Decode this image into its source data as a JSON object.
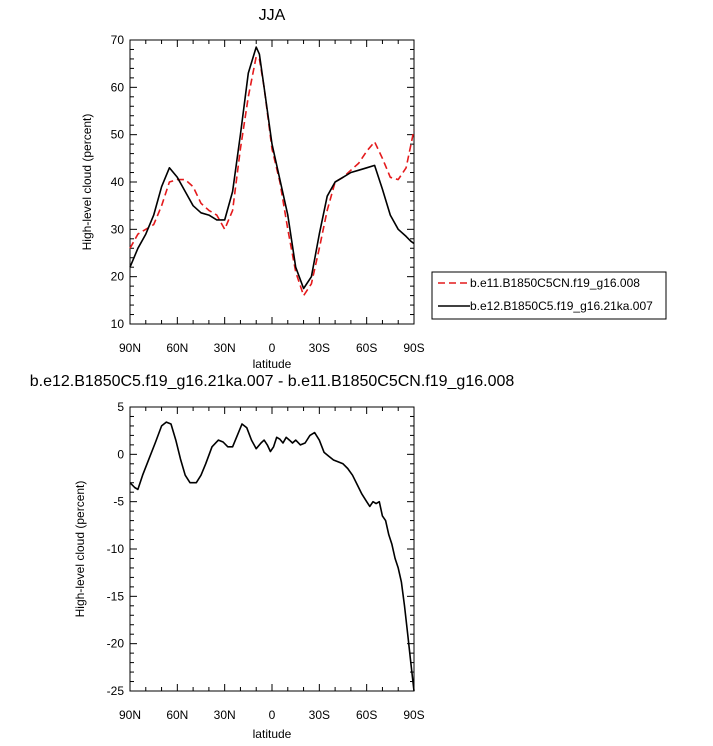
{
  "chart_data": [
    {
      "type": "line",
      "title": "JJA",
      "xlabel": "latitude",
      "ylabel": "High-level cloud (percent)",
      "xlim": [
        -90,
        90
      ],
      "ylim": [
        10,
        70
      ],
      "x_ticks": [
        -90,
        -60,
        -30,
        0,
        30,
        60,
        90
      ],
      "x_tick_labels": [
        "90N",
        "60N",
        "30N",
        "0",
        "30S",
        "60S",
        "90S"
      ],
      "y_ticks": [
        10,
        20,
        30,
        40,
        50,
        60,
        70
      ],
      "y_tick_labels": [
        "10",
        "20",
        "30",
        "40",
        "50",
        "60",
        "70"
      ],
      "legend": "right",
      "grid": false,
      "series": [
        {
          "name": "b.e11.B1850C5CN.f19_g16.008",
          "color": "#e41a1c",
          "dash": "dashed",
          "x": [
            -90,
            -85,
            -80,
            -75,
            -70,
            -65,
            -60,
            -55,
            -50,
            -45,
            -40,
            -35,
            -30,
            -25,
            -20,
            -15,
            -10,
            -8,
            -5,
            0,
            5,
            10,
            15,
            20,
            25,
            30,
            35,
            40,
            45,
            50,
            55,
            60,
            65,
            70,
            75,
            80,
            85,
            90
          ],
          "y": [
            26,
            29,
            30,
            31,
            35,
            40,
            40.5,
            40.5,
            39,
            35.5,
            34,
            33,
            30,
            34,
            47,
            58,
            66.5,
            66,
            60,
            47,
            40,
            30,
            21,
            16,
            18.5,
            26,
            34,
            40,
            41,
            42.5,
            44,
            46.5,
            48.5,
            45,
            41,
            40.5,
            43,
            51
          ]
        },
        {
          "name": "b.e12.B1850C5.f19_g16.21ka.007",
          "color": "#000000",
          "dash": "solid",
          "x": [
            -90,
            -85,
            -80,
            -75,
            -70,
            -65,
            -60,
            -55,
            -50,
            -45,
            -40,
            -35,
            -30,
            -25,
            -20,
            -15,
            -10,
            -8,
            -5,
            0,
            5,
            10,
            15,
            20,
            25,
            30,
            35,
            40,
            45,
            50,
            55,
            60,
            65,
            70,
            75,
            80,
            85,
            88,
            90
          ],
          "y": [
            22,
            26,
            29,
            33,
            39,
            43,
            41,
            38,
            35,
            33.5,
            33,
            32,
            32,
            38,
            50,
            63,
            68.5,
            67,
            60,
            48,
            40.5,
            33,
            22,
            17.5,
            20,
            29,
            37,
            40,
            41,
            42,
            42.5,
            43,
            43.5,
            38.5,
            33,
            30,
            28.5,
            27.5,
            27
          ]
        }
      ]
    },
    {
      "type": "line",
      "title": "b.e12.B1850C5.f19_g16.21ka.007 - b.e11.B1850C5CN.f19_g16.008",
      "xlabel": "latitude",
      "ylabel": "High-level cloud (percent)",
      "xlim": [
        -90,
        90
      ],
      "ylim": [
        -25,
        5
      ],
      "x_ticks": [
        -90,
        -60,
        -30,
        0,
        30,
        60,
        90
      ],
      "x_tick_labels": [
        "90N",
        "60N",
        "30N",
        "0",
        "30S",
        "60S",
        "90S"
      ],
      "y_ticks": [
        -25,
        -20,
        -15,
        -10,
        -5,
        0,
        5
      ],
      "y_tick_labels": [
        "-25",
        "-20",
        "-15",
        "-10",
        "-5",
        "0",
        "5"
      ],
      "grid": false,
      "series": [
        {
          "color": "#000000",
          "dash": "solid",
          "x": [
            -90,
            -87,
            -85,
            -82,
            -78,
            -74,
            -70,
            -67,
            -64,
            -61,
            -58,
            -55,
            -52,
            -48,
            -45,
            -42,
            -38,
            -34,
            -31,
            -28,
            -25,
            -22,
            -19,
            -16,
            -13,
            -10,
            -7,
            -5,
            -3,
            -1,
            1,
            3,
            5,
            7,
            9,
            11,
            13,
            15,
            18,
            21,
            24,
            27,
            30,
            33,
            36,
            39,
            42,
            45,
            48,
            51,
            54,
            57,
            60,
            62,
            64,
            66,
            68,
            70,
            72,
            74,
            76,
            78,
            80,
            82,
            84,
            86,
            88,
            90
          ],
          "y": [
            -3,
            -3.5,
            -3.7,
            -2.2,
            -0.5,
            1.2,
            3,
            3.4,
            3.2,
            1.5,
            -0.5,
            -2.2,
            -3,
            -3,
            -2.2,
            -1,
            0.8,
            1.5,
            1.3,
            0.8,
            0.8,
            2,
            3.2,
            2.8,
            1.5,
            0.6,
            1.2,
            1.5,
            1,
            0.3,
            0.8,
            1.8,
            1.6,
            1.2,
            1.8,
            1.5,
            1.2,
            1.5,
            1,
            1.2,
            2,
            2.3,
            1.5,
            0.2,
            -0.2,
            -0.6,
            -0.8,
            -1,
            -1.5,
            -2.2,
            -3.2,
            -4.2,
            -5,
            -5.5,
            -5,
            -5.2,
            -5,
            -6.5,
            -7,
            -8.5,
            -9.5,
            -11,
            -12,
            -13.5,
            -16,
            -19,
            -22,
            -25
          ]
        }
      ]
    }
  ]
}
